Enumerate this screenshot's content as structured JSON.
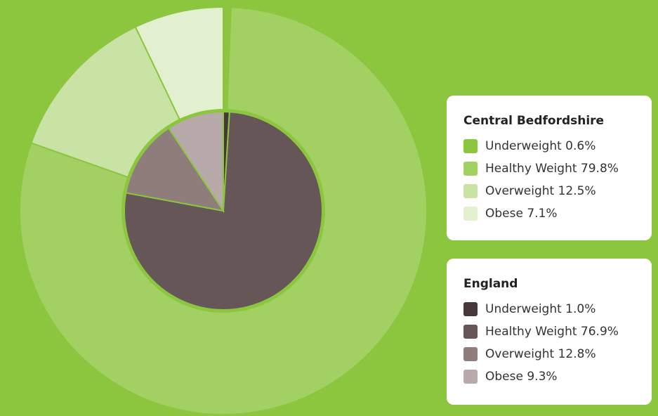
{
  "chart_data": {
    "type": "pie",
    "title": "",
    "outer_ring": {
      "name": "Central Bedfordshire",
      "slices": [
        {
          "label": "Underweight",
          "value": 0.6,
          "color": "#8cc63f"
        },
        {
          "label": "Healthy Weight",
          "value": 79.8,
          "color": "#a3d063"
        },
        {
          "label": "Overweight",
          "value": 12.5,
          "color": "#c8e3a3"
        },
        {
          "label": "Obese",
          "value": 7.1,
          "color": "#e2f0cf"
        }
      ]
    },
    "inner_pie": {
      "name": "England",
      "slices": [
        {
          "label": "Underweight",
          "value": 1.0,
          "color": "#45373a"
        },
        {
          "label": "Healthy Weight",
          "value": 76.9,
          "color": "#665657"
        },
        {
          "label": "Overweight",
          "value": 12.8,
          "color": "#8f7d7c"
        },
        {
          "label": "Obese",
          "value": 9.3,
          "color": "#b8aaab"
        }
      ]
    }
  },
  "legends": [
    {
      "title": "Central Bedfordshire",
      "items": [
        {
          "text": "Underweight 0.6%",
          "color": "#8cc63f"
        },
        {
          "text": "Healthy Weight 79.8%",
          "color": "#a3d063"
        },
        {
          "text": "Overweight 12.5%",
          "color": "#c8e3a3"
        },
        {
          "text": "Obese 7.1%",
          "color": "#e2f0cf"
        }
      ]
    },
    {
      "title": "England",
      "items": [
        {
          "text": "Underweight 1.0%",
          "color": "#45373a"
        },
        {
          "text": "Healthy Weight 76.9%",
          "color": "#665657"
        },
        {
          "text": "Overweight 12.8%",
          "color": "#8f7d7c"
        },
        {
          "text": "Obese 9.3%",
          "color": "#b8aaab"
        }
      ]
    }
  ],
  "colors": {
    "background": "#8cc63f",
    "separator": "#8cc63f"
  }
}
